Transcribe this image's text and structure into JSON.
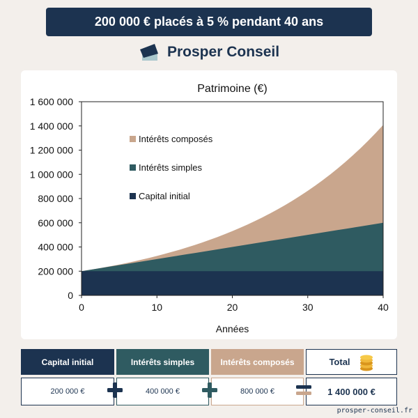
{
  "header": {
    "title": "200 000 € placés à 5 % pendant 40 ans"
  },
  "brand": {
    "name": "Prosper Conseil",
    "icon": "graduation-cap-icon"
  },
  "colors": {
    "navy": "#1c3350",
    "teal": "#2f5b61",
    "beige": "#c9a68d"
  },
  "chart_data": {
    "type": "area",
    "title": "Patrimoine (€)",
    "xlabel": "Années",
    "ylabel": "",
    "xlim": [
      0,
      40
    ],
    "ylim": [
      0,
      1600000
    ],
    "x_ticks": [
      "0",
      "10",
      "20",
      "30",
      "40"
    ],
    "y_ticks": [
      "0",
      "200 000",
      "400 000",
      "600 000",
      "800 000",
      "1 000 000",
      "1 200 000",
      "1 400 000",
      "1 600 000"
    ],
    "x": [
      0,
      5,
      10,
      15,
      20,
      25,
      30,
      35,
      40
    ],
    "series": [
      {
        "name": "Capital initial",
        "color": "#1c3350",
        "values": [
          200000,
          200000,
          200000,
          200000,
          200000,
          200000,
          200000,
          200000,
          200000
        ]
      },
      {
        "name": "Intérêts simples",
        "color": "#2f5b61",
        "values": [
          200000,
          250000,
          300000,
          350000,
          400000,
          450000,
          500000,
          550000,
          600000
        ]
      },
      {
        "name": "Intérêts composés",
        "color": "#c9a68d",
        "values": [
          200000,
          255000,
          326000,
          416000,
          531000,
          677000,
          864000,
          1103000,
          1408000
        ]
      }
    ],
    "legend": [
      "Intérêts composés",
      "Intérêts simples",
      "Capital initial"
    ],
    "legend_position": "top-left",
    "grid": false
  },
  "summary": {
    "capital_label": "Capital initial",
    "simple_label": "Intérêts simples",
    "compound_label": "Intérêts composés",
    "total_label": "Total",
    "capital_value": "200 000 €",
    "simple_value": "400 000 €",
    "compound_value": "800 000 €",
    "total_value": "1 400 000 €",
    "plus_icon": "plus-icon",
    "equals_icon": "equals-icon",
    "coins_icon": "coins-icon"
  },
  "footer": {
    "url": "prosper-conseil.fr"
  }
}
